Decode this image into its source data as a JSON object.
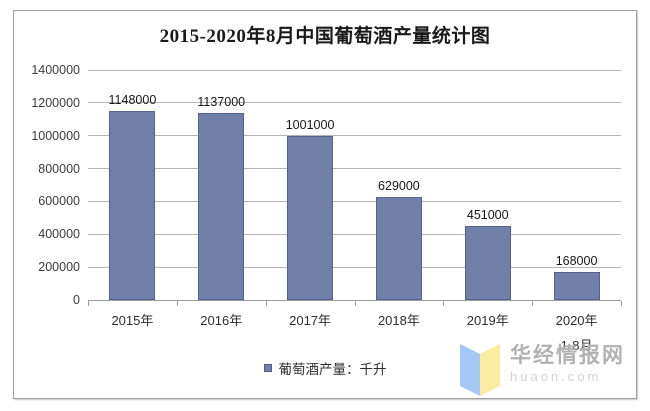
{
  "chart_data": {
    "type": "bar",
    "title": "2015-2020年8月中国葡萄酒产量统计图",
    "categories": [
      "2015年",
      "2016年",
      "2017年",
      "2018年",
      "2019年",
      "2020年\n1-8月"
    ],
    "values": [
      1148000,
      1137000,
      1001000,
      629000,
      451000,
      168000
    ],
    "data_labels": [
      "1148000",
      "1137000",
      "1001000",
      "629000",
      "451000",
      "168000"
    ],
    "y_ticks": [
      0,
      200000,
      400000,
      600000,
      800000,
      1000000,
      1200000,
      1400000
    ],
    "ylim": [
      0,
      1400000
    ],
    "xlabel": "",
    "ylabel": "",
    "grid": true,
    "legend_position": "bottom",
    "legend_label": "葡萄酒产量：千升",
    "bar_color": "#7180a9",
    "bar_border_color": "#55628d",
    "gridline_color": "#b5b5b5"
  },
  "watermark": {
    "site_name": "华经情报网",
    "site_url": "huaon.com",
    "logo_left_color": "#a5c8f4",
    "logo_right_color": "#fceca2"
  }
}
